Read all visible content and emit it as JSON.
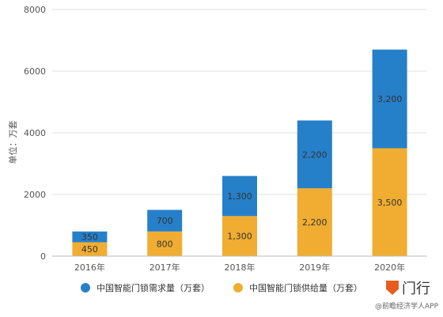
{
  "chart_data": {
    "type": "bar",
    "stacked": true,
    "categories": [
      "2016年",
      "2017年",
      "2018年",
      "2019年",
      "2020年"
    ],
    "series": [
      {
        "name": "中国智能门锁供给量（万套）",
        "values": [
          450,
          800,
          1300,
          2200,
          3500
        ],
        "color": "#f0ad32"
      },
      {
        "name": "中国智能门锁需求量（万套）",
        "values": [
          350,
          700,
          1300,
          2200,
          3200
        ],
        "color": "#2680c9"
      }
    ],
    "data_labels": [
      [
        "450",
        "800",
        "1,300",
        "2,200",
        "3,500"
      ],
      [
        "350",
        "700",
        "1,300",
        "2,200",
        "3,200"
      ]
    ],
    "ylabel": "单位：万套",
    "ylim": [
      0,
      8000
    ],
    "yticks": [
      0,
      2000,
      4000,
      6000,
      8000
    ],
    "grid": true,
    "legend_position": "bottom"
  },
  "legend": {
    "items": [
      {
        "label": "中国智能门锁需求量（万套）",
        "color": "#2680c9"
      },
      {
        "label": "中国智能门锁供给量（万套）",
        "color": "#f0ad32"
      }
    ]
  },
  "logo": {
    "text": "门行"
  },
  "watermark": {
    "text": "@前瞻经济学人APP"
  }
}
